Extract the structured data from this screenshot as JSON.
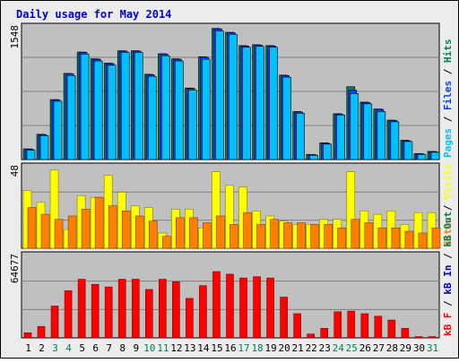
{
  "title": "Daily usage for May 2014",
  "colors": {
    "background": "#ececec",
    "title": "#0000cc",
    "plot_background": "#c0c0c0",
    "grid": "#808080",
    "border": "#000000",
    "pages": "#00c0ff",
    "pages_dark": "#006699",
    "files": "#0040ff",
    "files_dark": "#000080",
    "hits": "#00805c",
    "visits": "#ffff00",
    "visits_dark": "#808000",
    "sites": "#ff8000",
    "sites_dark": "#804000",
    "kbout": "#00805c",
    "kbin": "#0000cc",
    "kbf": "#ff0000",
    "kbf_dark": "#800000",
    "weekend_tick": "#00805c",
    "weekday_tick": "#000000"
  },
  "chart_data": [
    {
      "type": "bar",
      "name": "hits-files-pages",
      "ymax_label": "1548",
      "ylim": [
        0,
        1548
      ],
      "legend": [
        "Pages",
        "Files",
        "Hits"
      ],
      "legend_separator": " / ",
      "series": [
        {
          "name": "Hits",
          "values": [
            125,
            295,
            700,
            1005,
            1255,
            1175,
            1125,
            1270,
            1270,
            995,
            1235,
            1175,
            835,
            1200,
            1530,
            1485,
            1330,
            1340,
            1330,
            985,
            560,
            60,
            195,
            535,
            850,
            670,
            590,
            460,
            225,
            70,
            95
          ]
        },
        {
          "name": "Files",
          "values": [
            122,
            290,
            695,
            1000,
            1250,
            1170,
            1120,
            1265,
            1265,
            990,
            1230,
            1170,
            830,
            1195,
            1525,
            1480,
            1325,
            1335,
            1325,
            980,
            555,
            58,
            190,
            530,
            810,
            665,
            585,
            455,
            220,
            68,
            92
          ]
        },
        {
          "name": "Pages",
          "values": [
            110,
            280,
            680,
            980,
            1230,
            1150,
            1100,
            1250,
            1250,
            970,
            1210,
            1150,
            810,
            1170,
            1500,
            1460,
            1310,
            1320,
            1310,
            960,
            540,
            50,
            180,
            520,
            770,
            650,
            560,
            440,
            210,
            60,
            85
          ]
        }
      ]
    },
    {
      "type": "bar",
      "name": "visits-sites",
      "ymax_label": "48",
      "ylim": [
        0,
        48
      ],
      "legend": [
        "Sites",
        "Visits"
      ],
      "legend_separator": " / ",
      "series": [
        {
          "name": "Visits",
          "values": [
            34,
            27,
            46,
            11,
            31,
            30,
            43,
            33,
            25,
            24,
            9,
            23,
            23,
            12,
            45,
            37,
            36,
            22,
            19,
            16,
            14,
            14,
            17,
            17,
            45,
            22,
            20,
            22,
            14,
            21,
            21
          ]
        },
        {
          "name": "Sites",
          "values": [
            24,
            20,
            17,
            19,
            23,
            30,
            25,
            22,
            19,
            16,
            7,
            18,
            18,
            15,
            19,
            14,
            21,
            14,
            17,
            15,
            15,
            14,
            14,
            12,
            17,
            15,
            12,
            12,
            10,
            9,
            12
          ]
        }
      ]
    },
    {
      "type": "bar",
      "name": "kb-f-in-out",
      "ymax_label": "64677",
      "ylim": [
        0,
        64677
      ],
      "legend": [
        "kB F",
        "kB In",
        "kB Out"
      ],
      "legend_separator": " / ",
      "series": [
        {
          "name": "kB F",
          "values": [
            4000,
            9000,
            25000,
            37000,
            46000,
            42000,
            40000,
            46000,
            46000,
            38000,
            46000,
            44000,
            31000,
            41000,
            52000,
            50000,
            47000,
            48000,
            47000,
            32000,
            19000,
            3000,
            7500,
            20500,
            21000,
            19000,
            17000,
            14000,
            7500,
            1000,
            1000
          ]
        }
      ]
    }
  ],
  "x_labels": [
    "1",
    "2",
    "3",
    "4",
    "5",
    "6",
    "7",
    "8",
    "9",
    "10",
    "11",
    "12",
    "13",
    "14",
    "15",
    "16",
    "17",
    "18",
    "19",
    "20",
    "21",
    "22",
    "23",
    "24",
    "25",
    "26",
    "27",
    "28",
    "29",
    "30",
    "31"
  ],
  "weekend_days": [
    3,
    4,
    10,
    11,
    17,
    18,
    24,
    25,
    31
  ]
}
